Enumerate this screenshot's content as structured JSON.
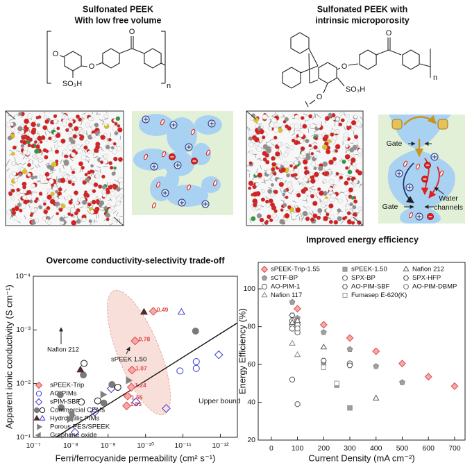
{
  "panels": [
    {
      "title_lines": [
        "Sulfonated PEEK",
        "With low free volume"
      ],
      "atom_labels": [
        "O",
        "O",
        "O"
      ],
      "substituent": "SO₃H",
      "repeat": "n"
    },
    {
      "title_lines": [
        "Sulfonated PEEK with",
        "intrinsic microporosity"
      ],
      "atom_labels": [
        "O",
        "O",
        "O"
      ],
      "substituent": "SO₃H",
      "repeat": "n"
    }
  ],
  "schematic": {
    "gate_labels": [
      "Gate",
      "Gate"
    ],
    "channel_label": [
      "Water",
      "channels"
    ]
  },
  "chart_data": [
    {
      "type": "scatter",
      "title": "Overcome conductivity-selectivity trade-off",
      "x_label": "Ferri/ferrocyanide permeability (cm² s⁻¹)",
      "y_label": "Apparent ionic conductivity (S cm⁻¹)",
      "xscale": "log",
      "yscale": "log",
      "xlim": [
        1e-07,
        3.5e-13
      ],
      "ylim": [
        0.1,
        0.0001
      ],
      "xticks": [
        {
          "value": 1e-07,
          "label": "10⁻⁷"
        },
        {
          "value": 1e-08,
          "label": "10⁻⁸"
        },
        {
          "value": 1e-09,
          "label": "10⁻⁹"
        },
        {
          "value": 1e-10,
          "label": "10⁻¹⁰"
        },
        {
          "value": 1e-11,
          "label": "10⁻¹¹"
        },
        {
          "value": 1e-12,
          "label": "10⁻¹²"
        }
      ],
      "yticks": [
        {
          "value": 0.1,
          "label": "10⁻¹"
        },
        {
          "value": 0.01,
          "label": "10⁻²"
        },
        {
          "value": 0.001,
          "label": "10⁻³"
        },
        {
          "value": 0.0001,
          "label": "10⁻⁴"
        }
      ],
      "legend": "lower left",
      "annotations": [
        "Nafion 212",
        "sPEEK 1.50"
      ],
      "upper_bound": {
        "label": "Upper bound",
        "x": [
          2.5e-08,
          3.5e-13
        ],
        "y": [
          0.1,
          0.00074
        ]
      },
      "series": [
        {
          "name": "sPEEK-Trip",
          "variants": [
            {
              "marker": "diamond",
              "color": "#e04848",
              "fill": "#f5a9a9",
              "x": [
                3.2e-10,
                3e-10,
                2.4e-10,
                2.3e-10,
                1.9e-10,
                6.2e-11
              ],
              "y": [
                0.026,
                0.017,
                0.0117,
                0.0056,
                0.0016,
                0.00045
              ],
              "point_labels": [
                "1.85",
                "1.55",
                "1.24",
                "1.07",
                "0.78",
                "0.49"
              ]
            }
          ]
        },
        {
          "name": "AO-PIMs",
          "variants": [
            {
              "marker": "circle",
              "color": "#3a3acc",
              "fill": "none",
              "x": [
                1.2e-11,
                4.4e-12,
                4.4e-12
              ],
              "y": [
                0.0058,
                0.0052,
                0.0039
              ]
            }
          ]
        },
        {
          "name": "sPIM-SBF",
          "variants": [
            {
              "marker": "diamond",
              "color": "#3a3acc",
              "fill": "none",
              "x": [
                7.7e-09,
                2.3e-09,
                8.3e-10,
                1.8e-10,
                2.8e-11,
                1.1e-12
              ],
              "y": [
                0.081,
                0.034,
                0.0124,
                0.022,
                0.029,
                0.0029
              ]
            }
          ]
        },
        {
          "name": "Commercial CEMs",
          "variants": [
            {
              "marker": "circle",
              "color": "#7a7a7a",
              "fill": "#7a7a7a",
              "x": [
                1.8e-08,
                1.9e-08,
                4.6e-09,
                1.3e-09,
                7.9e-10,
                4.6e-12
              ],
              "y": [
                0.028,
                0.016,
                0.0069,
                0.023,
                0.0104,
                0.00105
              ]
            },
            {
              "marker": "circle",
              "color": "#111111",
              "fill": "none",
              "x": [
                5.2e-09,
                4.4e-09,
                1.9e-09,
                5.5e-10
              ],
              "y": [
                0.022,
                0.0042,
                0.021,
                0.0117
              ]
            }
          ]
        },
        {
          "name": "Hydrophilic PIMs",
          "variants": [
            {
              "marker": "triUp",
              "color": "#4a2a2a",
              "fill": "#4a2a2a",
              "x": [
                5.5e-09,
                1.1e-10
              ],
              "y": [
                0.0056,
                0.00047
              ]
            },
            {
              "marker": "triUp",
              "color": "#3a3acc",
              "fill": "none",
              "x": [
                1.1e-11
              ],
              "y": [
                0.00047
              ]
            }
          ]
        },
        {
          "name": "Porous PES/SPEEK",
          "variants": [
            {
              "marker": "triRight",
              "color": "#808080",
              "fill": "#808080",
              "x": [
                1.1e-08,
                9.5e-09,
                1.4e-09,
                2.9e-10
              ],
              "y": [
                0.046,
                0.039,
                0.016,
                0.0087
              ]
            }
          ]
        },
        {
          "name": "Graphene oxide",
          "variants": [
            {
              "marker": "triLeft",
              "color": "#808080",
              "fill": "#808080",
              "x": [
                1e-08,
                9.1e-09
              ],
              "y": [
                0.044,
                0.035
              ]
            }
          ]
        }
      ]
    },
    {
      "type": "scatter",
      "title": "Improved energy efficiency",
      "x_label": "Current Density (mA cm⁻²)",
      "y_label": "Energy Efficiency (%)",
      "xlim": [
        -50,
        740
      ],
      "ylim": [
        20,
        114
      ],
      "xticks": [
        0,
        100,
        200,
        300,
        400,
        500,
        600,
        700
      ],
      "yticks": [
        20,
        40,
        60,
        80,
        100
      ],
      "legend": "upper left",
      "series": [
        {
          "name": "sPEEK-Trip-1.55",
          "marker": "diamond",
          "color": "#e04848",
          "fill": "#f5a9a9",
          "x": [
            100,
            200,
            300,
            400,
            500,
            600,
            700
          ],
          "y": [
            89.5,
            81,
            74,
            67,
            60.5,
            53.5,
            48.5
          ]
        },
        {
          "name": "sCTF-BP",
          "marker": "pentagon",
          "color": "#8a8a8a",
          "fill": "#a0a0a0",
          "x": [
            80,
            100,
            200,
            300,
            400,
            500
          ],
          "y": [
            93,
            84.5,
            77,
            68,
            59,
            50.5
          ]
        },
        {
          "name": "AO-PIM-1",
          "marker": "circle",
          "color": "#555555",
          "fill": "#ffffff",
          "x": [
            80,
            80,
            80,
            100,
            100,
            300
          ],
          "y": [
            83,
            81,
            79,
            81,
            77,
            60.5
          ]
        },
        {
          "name": "Nafion 117",
          "marker": "triUp",
          "color": "#888888",
          "fill": "#ffffff",
          "x": [
            80,
            100
          ],
          "y": [
            71,
            65
          ]
        },
        {
          "name": "sPEEK-1.50",
          "marker": "square",
          "color": "#8a8a8a",
          "fill": "#a0a0a0",
          "x": [
            200,
            250,
            300
          ],
          "y": [
            61,
            49,
            37
          ]
        },
        {
          "name": "SPX-BP",
          "marker": "octagon",
          "color": "#555555",
          "fill": "#ffffff",
          "x": [
            80,
            100
          ],
          "y": [
            52,
            39
          ]
        },
        {
          "name": "AO-PIM-SBF",
          "marker": "hexagon",
          "color": "#555555",
          "fill": "#ffffff",
          "x": [
            200,
            300
          ],
          "y": [
            62,
            59.5
          ]
        },
        {
          "name": "Fumasep E-620(K)",
          "marker": "square",
          "color": "#9a9a9a",
          "fill": "#ffffff",
          "x": [
            200,
            250
          ],
          "y": [
            58.5,
            50
          ]
        },
        {
          "name": "Nafion 212",
          "marker": "triUp",
          "color": "#555555",
          "fill": "#ffffff",
          "x": [
            80,
            100,
            200,
            400
          ],
          "y": [
            82,
            83,
            69,
            42
          ]
        },
        {
          "name": "SPX-HFP",
          "marker": "hexagon",
          "color": "#444444",
          "fill": "#ffffff",
          "x": [
            80
          ],
          "y": [
            86
          ]
        },
        {
          "name": "AO-PIM-DBMP",
          "marker": "octagon",
          "color": "#777777",
          "fill": "#ffffff",
          "x": [
            100
          ],
          "y": [
            79
          ]
        }
      ]
    }
  ]
}
